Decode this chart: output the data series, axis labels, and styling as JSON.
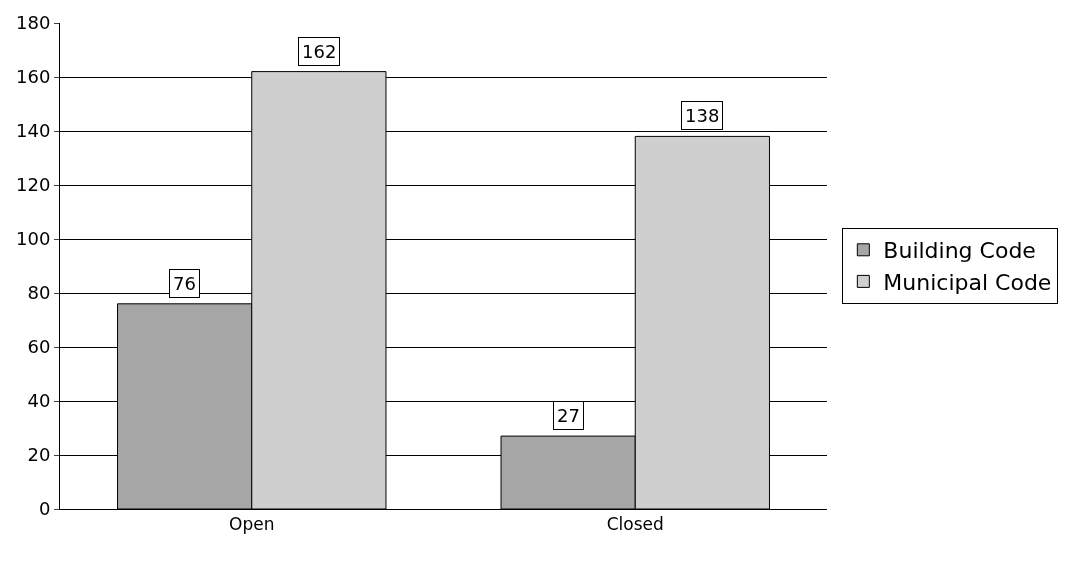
{
  "chart_data": {
    "type": "bar",
    "categories": [
      "Open",
      "Closed"
    ],
    "series": [
      {
        "name": "Building Code",
        "color": "#a6a6a6",
        "values": [
          76,
          27
        ]
      },
      {
        "name": "Municipal Code",
        "color": "#cfcfcf",
        "values": [
          162,
          138
        ]
      }
    ],
    "ylim": [
      0,
      180
    ],
    "yticks": [
      0,
      20,
      40,
      60,
      80,
      100,
      120,
      140,
      160,
      180
    ],
    "grid": "y",
    "legend": "right",
    "data_labels": true
  }
}
